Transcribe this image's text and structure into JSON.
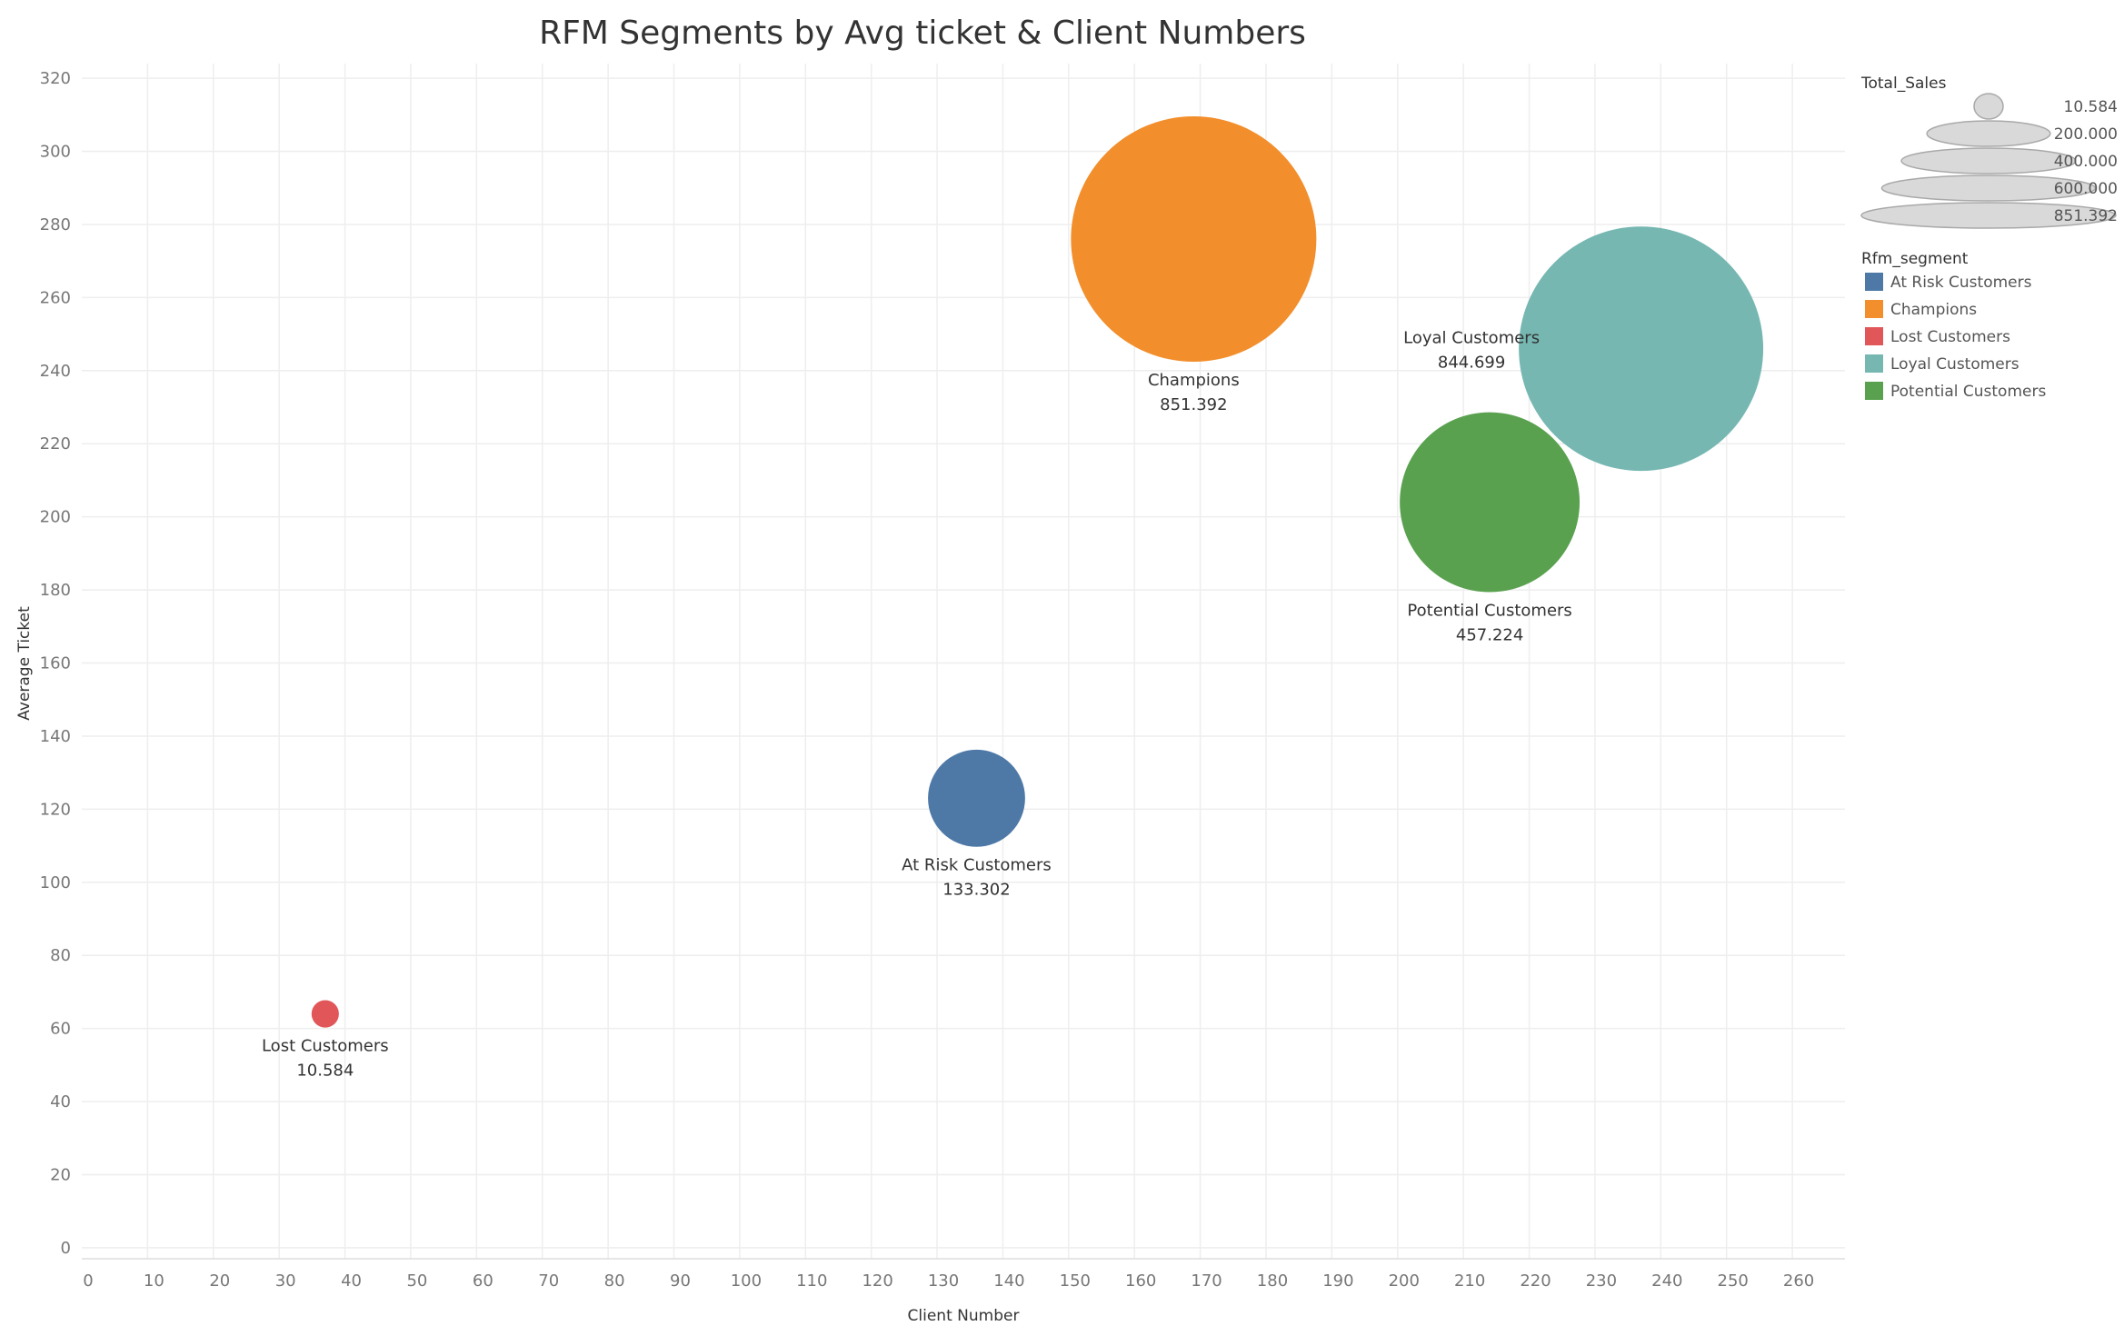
{
  "chart_data": {
    "type": "scatter",
    "title": "RFM Segments by Avg ticket & Client Numbers",
    "xlabel": "Client Number",
    "ylabel": "Average Ticket",
    "xlim": [
      0,
      268
    ],
    "ylim": [
      -3,
      324
    ],
    "xticks": [
      0,
      10,
      20,
      30,
      40,
      50,
      60,
      70,
      80,
      90,
      100,
      110,
      120,
      130,
      140,
      150,
      160,
      170,
      180,
      190,
      200,
      210,
      220,
      230,
      240,
      250,
      260
    ],
    "yticks": [
      0,
      20,
      40,
      60,
      80,
      100,
      120,
      140,
      160,
      180,
      200,
      220,
      240,
      260,
      280,
      300,
      320
    ],
    "grid": true,
    "size_field": "Total_Sales",
    "color_field": "Rfm_segment",
    "points": [
      {
        "segment": "Champions",
        "x": 169,
        "y": 276,
        "total_sales": 851.392,
        "label_value": "851.392",
        "label_position": "below",
        "color": "#F28E2B"
      },
      {
        "segment": "Loyal Customers",
        "x": 237,
        "y": 246,
        "total_sales": 844.699,
        "label_value": "844.699",
        "label_position": "left",
        "color": "#76B7B2"
      },
      {
        "segment": "Potential Customers",
        "x": 214,
        "y": 204,
        "total_sales": 457.224,
        "label_value": "457.224",
        "label_position": "below",
        "color": "#59A14F"
      },
      {
        "segment": "At Risk Customers",
        "x": 136,
        "y": 123,
        "total_sales": 133.302,
        "label_value": "133.302",
        "label_position": "below",
        "color": "#4E79A7"
      },
      {
        "segment": "Lost Customers",
        "x": 37,
        "y": 64,
        "total_sales": 10.584,
        "label_value": "10.584",
        "label_position": "below",
        "color": "#E15759"
      }
    ],
    "size_legend": {
      "title": "Total_Sales",
      "entries": [
        {
          "label": "10.584",
          "value": 10.584
        },
        {
          "label": "200.000",
          "value": 200
        },
        {
          "label": "400.000",
          "value": 400
        },
        {
          "label": "600.000",
          "value": 600
        },
        {
          "label": "851.392",
          "value": 851.392
        }
      ]
    },
    "color_legend": {
      "title": "Rfm_segment",
      "entries": [
        {
          "label": "At Risk Customers",
          "color": "#4E79A7"
        },
        {
          "label": "Champions",
          "color": "#F28E2B"
        },
        {
          "label": "Lost Customers",
          "color": "#E15759"
        },
        {
          "label": "Loyal Customers",
          "color": "#76B7B2"
        },
        {
          "label": "Potential Customers",
          "color": "#59A14F"
        }
      ]
    },
    "legend_position": "right"
  }
}
